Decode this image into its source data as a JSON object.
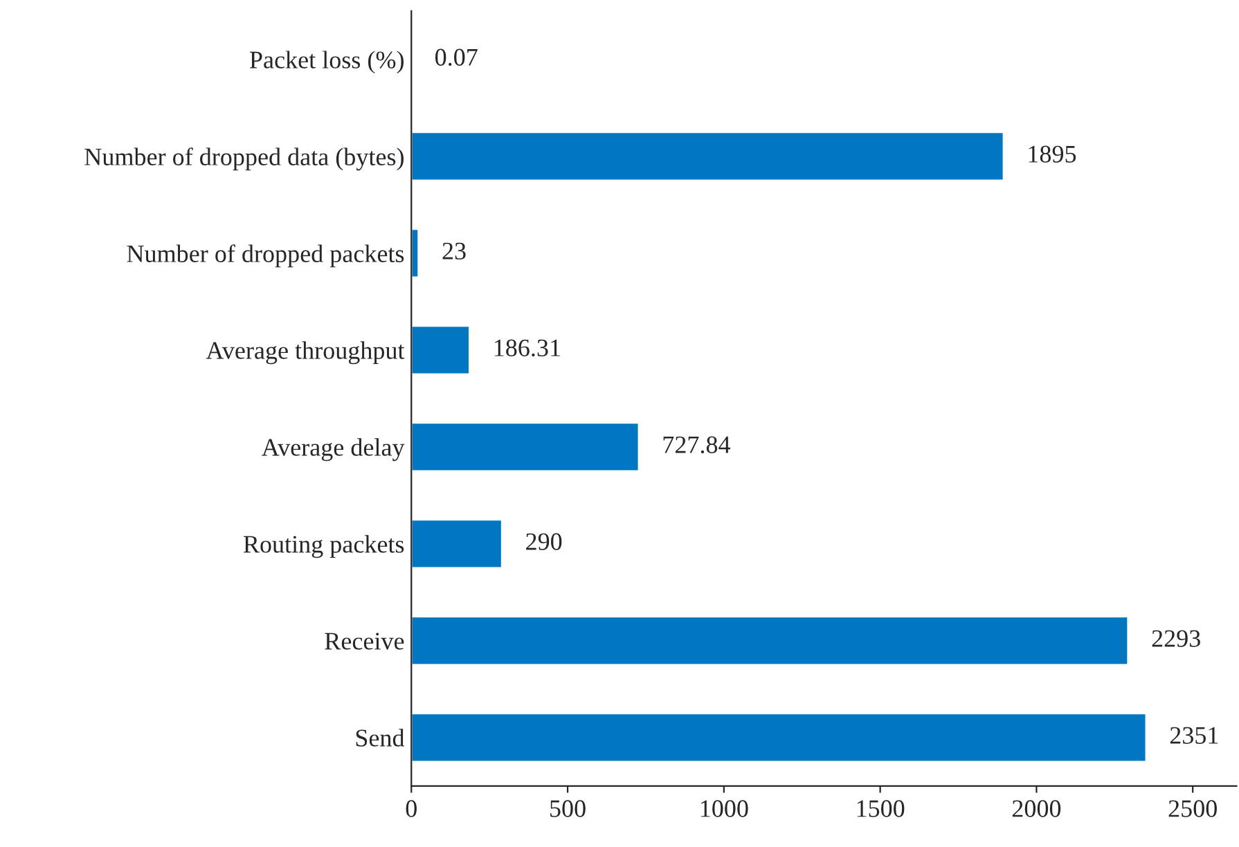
{
  "chart_data": {
    "type": "bar",
    "orientation": "horizontal",
    "categories": [
      "Packet loss (%)",
      "Number of dropped data (bytes)",
      "Number of dropped packets",
      "Average throughput",
      "Average delay",
      "Routing packets",
      "Receive",
      "Send"
    ],
    "values": [
      0.07,
      1895,
      23,
      186.31,
      727.84,
      290,
      2293,
      2351
    ],
    "color": "#0077c0",
    "xlim": [
      0,
      2640
    ],
    "xticks": [
      0,
      500,
      1000,
      1500,
      2000,
      2500
    ],
    "data_labels": true,
    "grid": false,
    "legend": false
  }
}
